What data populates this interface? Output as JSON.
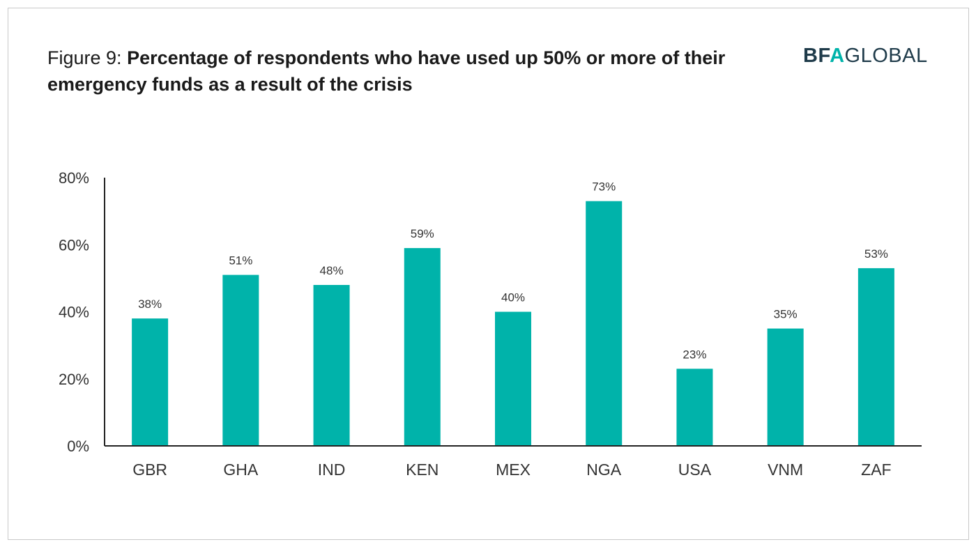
{
  "figure_label": "Figure 9:",
  "title": "Percentage of respondents who have used up 50% or more of their emergency funds as a result of the crisis",
  "logo": {
    "part1": "BF",
    "part2": "A",
    "part3": "GLOBAL"
  },
  "colors": {
    "bar": "#00b3aa",
    "axis": "#222222",
    "logo_dark": "#1f3b4a"
  },
  "chart_data": {
    "type": "bar",
    "title": "Percentage of respondents who have used up 50% or more of their emergency funds as a result of the crisis",
    "categories": [
      "GBR",
      "GHA",
      "IND",
      "KEN",
      "MEX",
      "NGA",
      "USA",
      "VNM",
      "ZAF"
    ],
    "values": [
      38,
      51,
      48,
      59,
      40,
      73,
      23,
      35,
      53
    ],
    "data_labels": [
      "38%",
      "51%",
      "48%",
      "59%",
      "40%",
      "73%",
      "23%",
      "35%",
      "53%"
    ],
    "y_ticks": [
      "0%",
      "20%",
      "40%",
      "60%",
      "80%"
    ],
    "ylim": [
      0,
      80
    ],
    "xlabel": "",
    "ylabel": "",
    "grid": false,
    "legend": "none"
  }
}
